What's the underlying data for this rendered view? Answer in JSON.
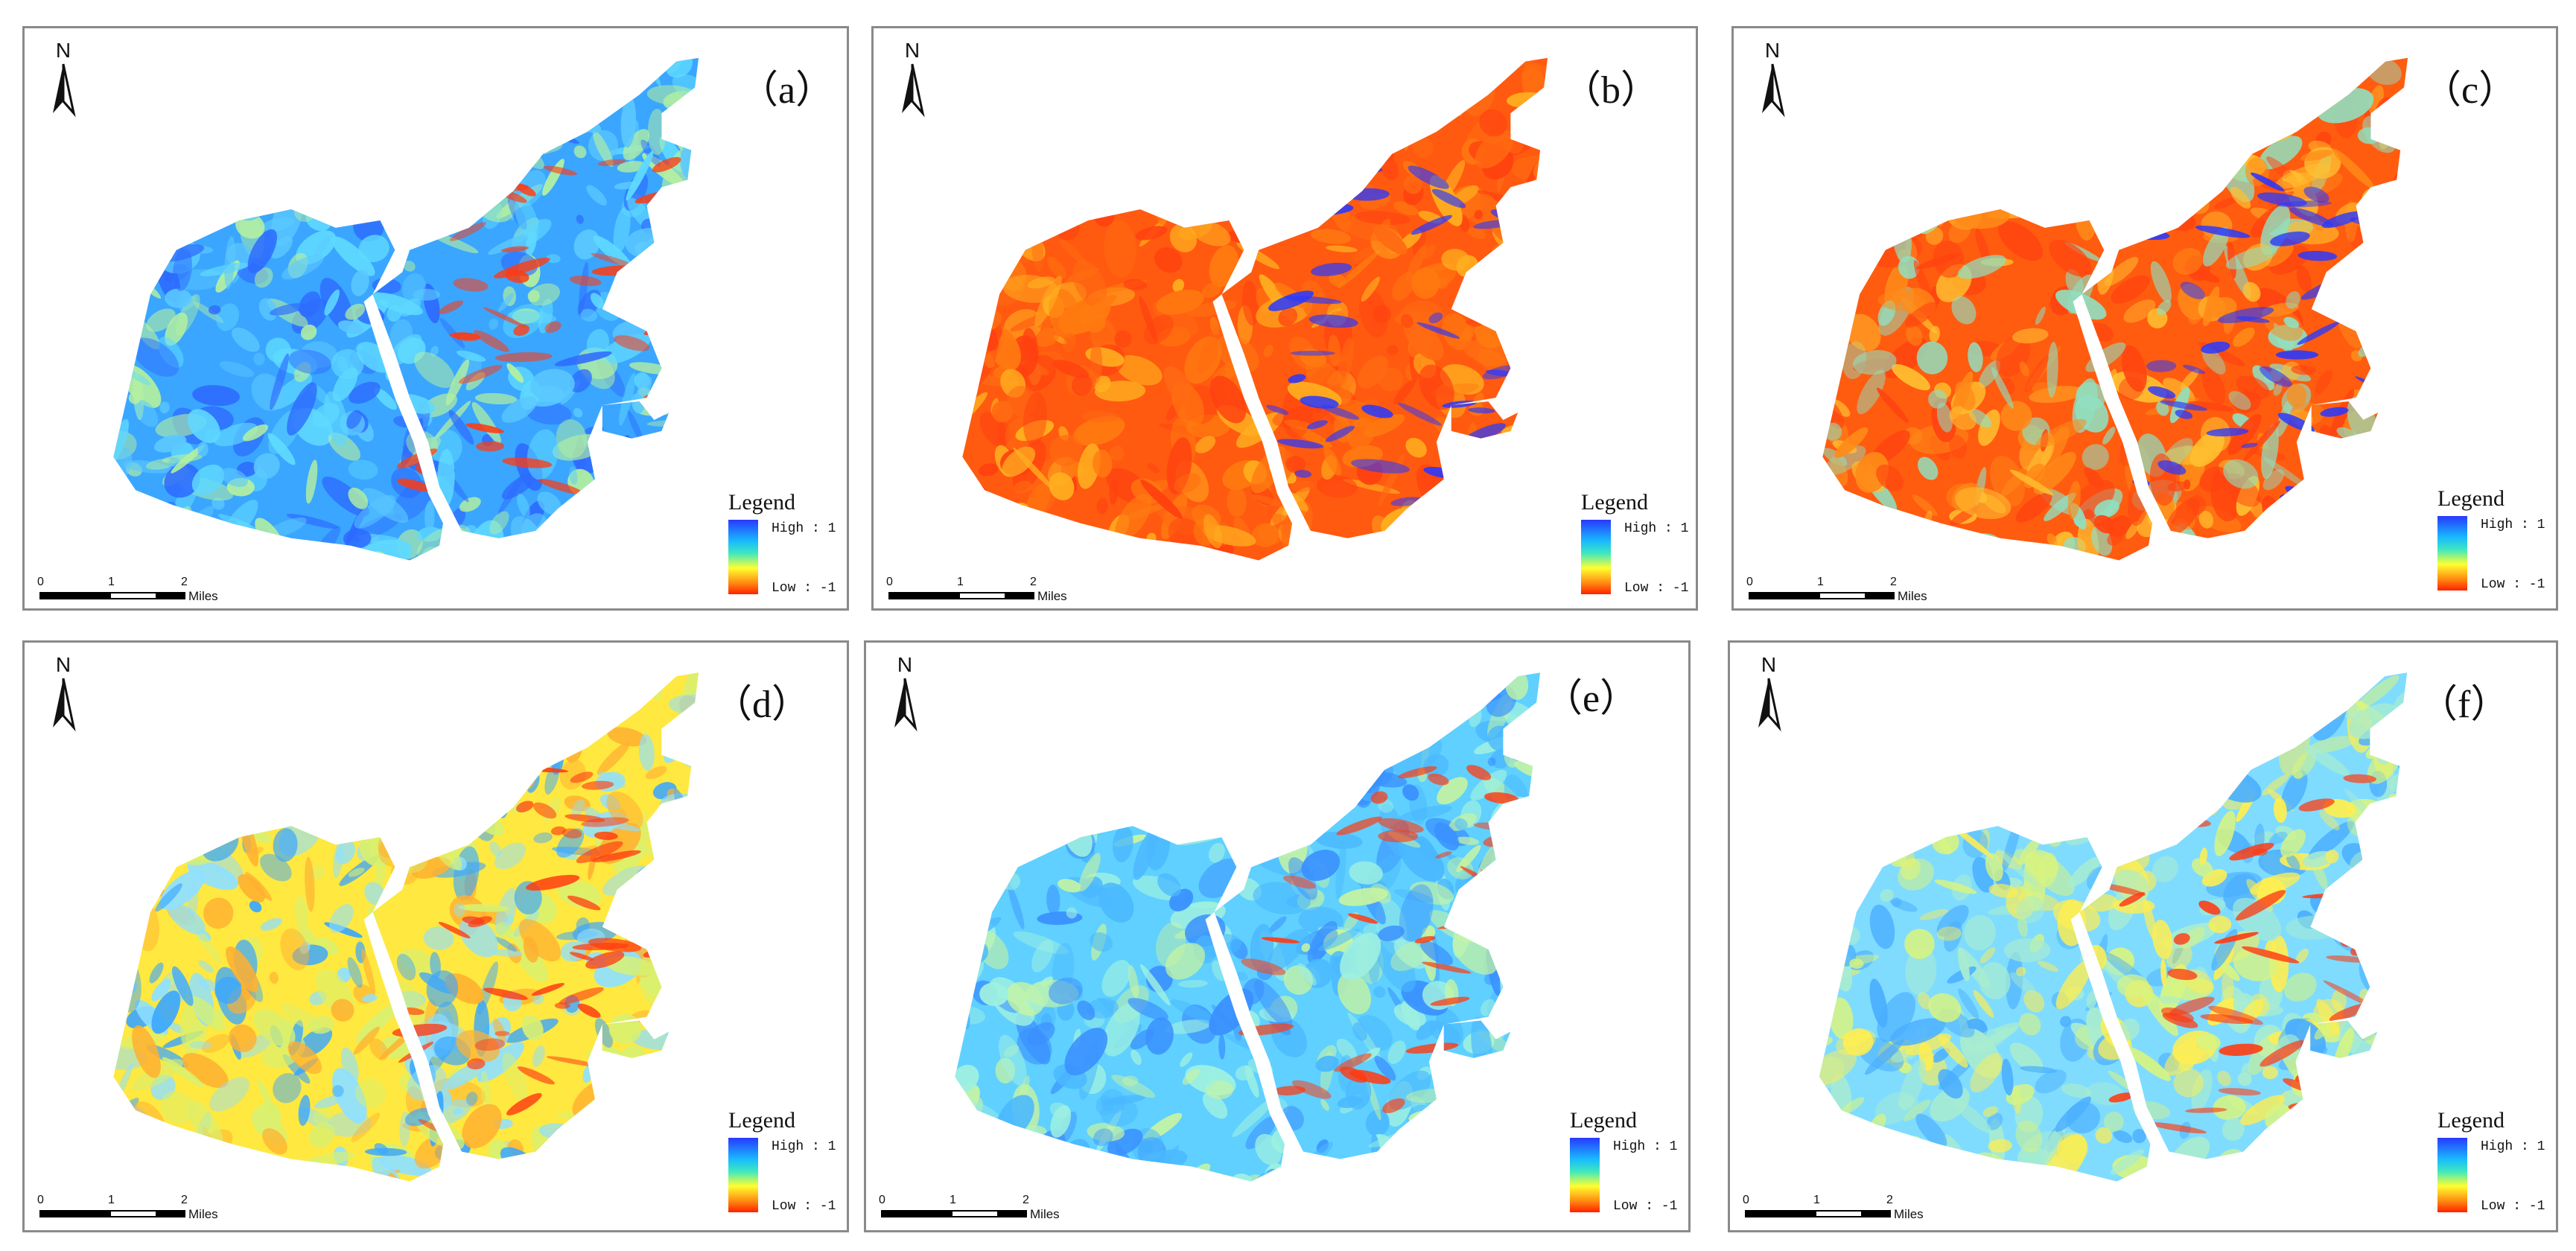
{
  "panels": [
    {
      "label": "（a）",
      "north": "N",
      "legend_title": "Legend",
      "legend_high": "High : 1",
      "legend_low": "Low : -1",
      "scale": {
        "t0": "0",
        "t1": "1",
        "t2": "2",
        "unit": "Miles"
      },
      "palette": [
        "#3aa6ff",
        "#5fd9ff",
        "#b4f0a0",
        "#2d6bff",
        "#5bc8ff"
      ],
      "accent": "#ff3a10"
    },
    {
      "label": "（b）",
      "north": "N",
      "legend_title": "Legend",
      "legend_high": "High : 1",
      "legend_low": "Low : -1",
      "scale": {
        "t0": "0",
        "t1": "1",
        "t2": "2",
        "unit": "Miles"
      },
      "palette": [
        "#ff5a10",
        "#ff7a10",
        "#ff4010",
        "#ffb020",
        "#ff6a12"
      ],
      "accent": "#2838ff"
    },
    {
      "label": "（c）",
      "north": "N",
      "legend_title": "Legend",
      "legend_high": "High : 1",
      "legend_low": "Low : -1",
      "scale": {
        "t0": "0",
        "t1": "1",
        "t2": "2",
        "unit": "Miles"
      },
      "palette": [
        "#ff5c10",
        "#ff8a18",
        "#ffc030",
        "#ff4410",
        "#90e0c0"
      ],
      "accent": "#2838ff"
    },
    {
      "label": "（d）",
      "north": "N",
      "legend_title": "Legend",
      "legend_high": "High : 1",
      "legend_low": "Low : -1",
      "scale": {
        "t0": "0",
        "t1": "1",
        "t2": "2",
        "unit": "Miles"
      },
      "palette": [
        "#ffe840",
        "#8fe0ff",
        "#ffb030",
        "#3aa6ff",
        "#d8f070"
      ],
      "accent": "#ff3a10"
    },
    {
      "label": "（e）",
      "north": "N",
      "legend_title": "Legend",
      "legend_high": "High : 1",
      "legend_low": "Low : -1",
      "scale": {
        "t0": "0",
        "t1": "1",
        "t2": "2",
        "unit": "Miles"
      },
      "palette": [
        "#5fd0ff",
        "#9ef0e0",
        "#3a90ff",
        "#c8f4a0",
        "#4ab8ff"
      ],
      "accent": "#ff3a10"
    },
    {
      "label": "（f）",
      "north": "N",
      "legend_title": "Legend",
      "legend_high": "High : 1",
      "legend_low": "Low : -1",
      "scale": {
        "t0": "0",
        "t1": "1",
        "t2": "2",
        "unit": "Miles"
      },
      "palette": [
        "#7fdcff",
        "#d8f480",
        "#ffee50",
        "#4aaeff",
        "#a8ecd0"
      ],
      "accent": "#ff3a10"
    }
  ]
}
